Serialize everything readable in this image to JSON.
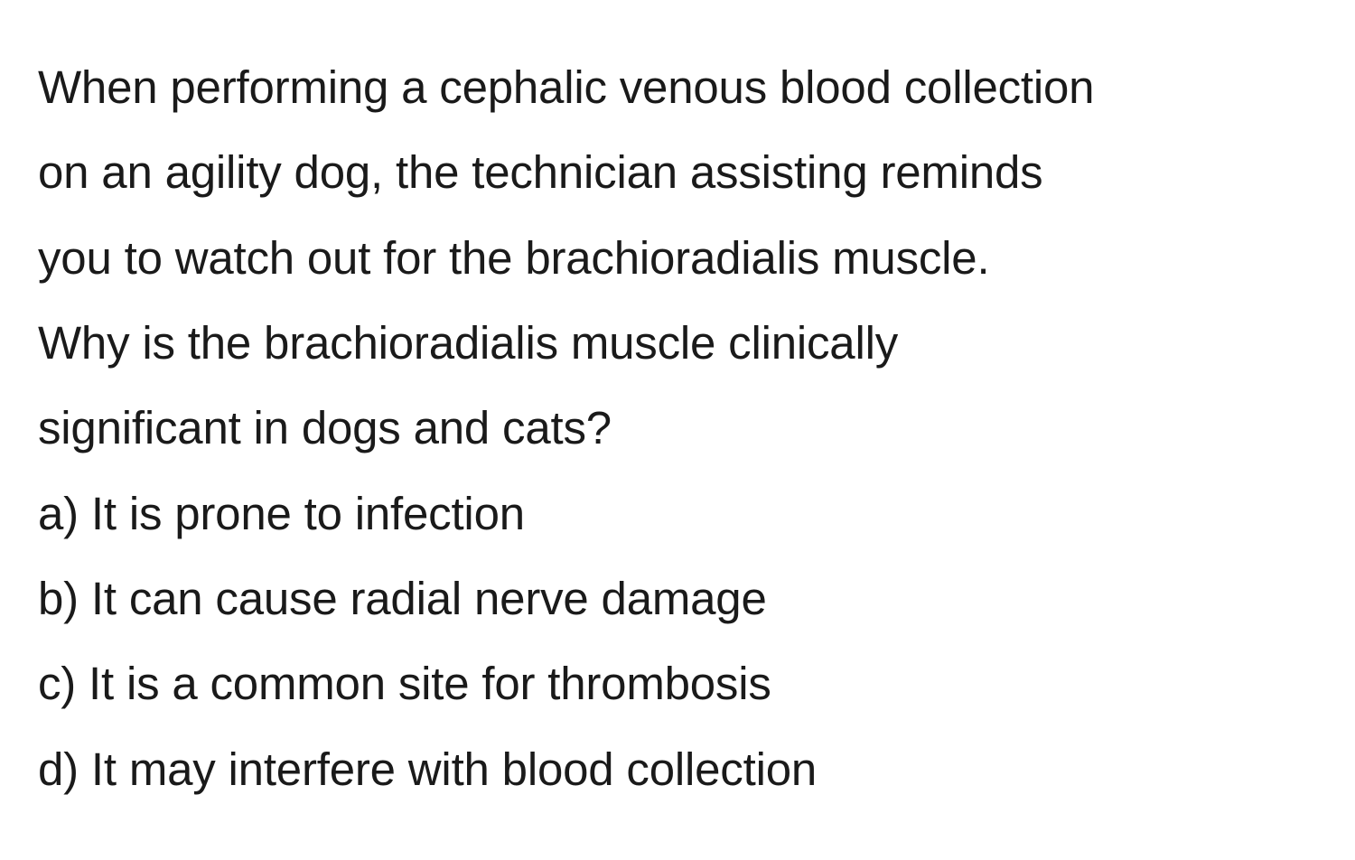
{
  "text": {
    "font_family": "-apple-system, Helvetica, Arial, sans-serif",
    "font_size_pt": 38,
    "font_weight": 400,
    "color": "#1a1a1a",
    "background_color": "#ffffff",
    "line_height": 1.85
  },
  "question": {
    "lines": [
      "When performing a cephalic venous blood collection",
      "on an agility dog, the technician assisting reminds",
      "you to watch out for the brachioradialis muscle.",
      "Why is the brachioradialis muscle clinically",
      "significant in dogs and cats?"
    ]
  },
  "options": {
    "a": "a) It is prone to infection",
    "b": "b) It can cause radial nerve damage",
    "c": "c) It is a common site for thrombosis",
    "d": "d) It may interfere with blood collection"
  }
}
